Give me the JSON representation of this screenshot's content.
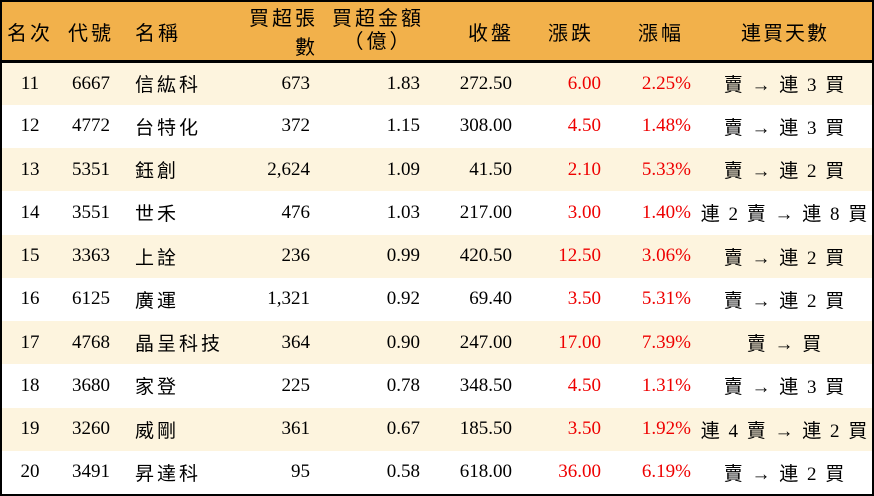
{
  "colors": {
    "header_bg": "#F2B14B",
    "row_alt_bg": "#FDF4DE",
    "row_bg": "#FFFFFF",
    "up_red": "#EE0000",
    "text": "#000000",
    "border": "#000000"
  },
  "chart_data": {
    "type": "table",
    "title": "",
    "columns": [
      {
        "key": "rank",
        "label": "名次"
      },
      {
        "key": "code",
        "label": "代號"
      },
      {
        "key": "name",
        "label": "名稱"
      },
      {
        "key": "volume",
        "label": "買超張數"
      },
      {
        "key": "amount",
        "label": "買超金額",
        "label2": "（億）"
      },
      {
        "key": "close",
        "label": "收盤"
      },
      {
        "key": "change",
        "label": "漲跌"
      },
      {
        "key": "pct",
        "label": "漲幅"
      },
      {
        "key": "streak",
        "label": "連買天數"
      }
    ],
    "rows": [
      {
        "rank": "11",
        "code": "6667",
        "name": "信紘科",
        "volume": "673",
        "amount": "1.83",
        "close": "272.50",
        "change": "6.00",
        "pct": "2.25%",
        "streak": "賣 → 連 3 買"
      },
      {
        "rank": "12",
        "code": "4772",
        "name": "台特化",
        "volume": "372",
        "amount": "1.15",
        "close": "308.00",
        "change": "4.50",
        "pct": "1.48%",
        "streak": "賣 → 連 3 買"
      },
      {
        "rank": "13",
        "code": "5351",
        "name": "鈺創",
        "volume": "2,624",
        "amount": "1.09",
        "close": "41.50",
        "change": "2.10",
        "pct": "5.33%",
        "streak": "賣 → 連 2 買"
      },
      {
        "rank": "14",
        "code": "3551",
        "name": "世禾",
        "volume": "476",
        "amount": "1.03",
        "close": "217.00",
        "change": "3.00",
        "pct": "1.40%",
        "streak": "連 2 賣 → 連 8 買"
      },
      {
        "rank": "15",
        "code": "3363",
        "name": "上詮",
        "volume": "236",
        "amount": "0.99",
        "close": "420.50",
        "change": "12.50",
        "pct": "3.06%",
        "streak": "賣 → 連 2 買"
      },
      {
        "rank": "16",
        "code": "6125",
        "name": "廣運",
        "volume": "1,321",
        "amount": "0.92",
        "close": "69.40",
        "change": "3.50",
        "pct": "5.31%",
        "streak": "賣 → 連 2 買"
      },
      {
        "rank": "17",
        "code": "4768",
        "name": "晶呈科技",
        "volume": "364",
        "amount": "0.90",
        "close": "247.00",
        "change": "17.00",
        "pct": "7.39%",
        "streak": "賣 → 買"
      },
      {
        "rank": "18",
        "code": "3680",
        "name": "家登",
        "volume": "225",
        "amount": "0.78",
        "close": "348.50",
        "change": "4.50",
        "pct": "1.31%",
        "streak": "賣 → 連 3 買"
      },
      {
        "rank": "19",
        "code": "3260",
        "name": "威剛",
        "volume": "361",
        "amount": "0.67",
        "close": "185.50",
        "change": "3.50",
        "pct": "1.92%",
        "streak": "連 4 賣 → 連 2 買"
      },
      {
        "rank": "20",
        "code": "3491",
        "name": "昇達科",
        "volume": "95",
        "amount": "0.58",
        "close": "618.00",
        "change": "36.00",
        "pct": "6.19%",
        "streak": "賣 → 連 2 買"
      }
    ]
  }
}
